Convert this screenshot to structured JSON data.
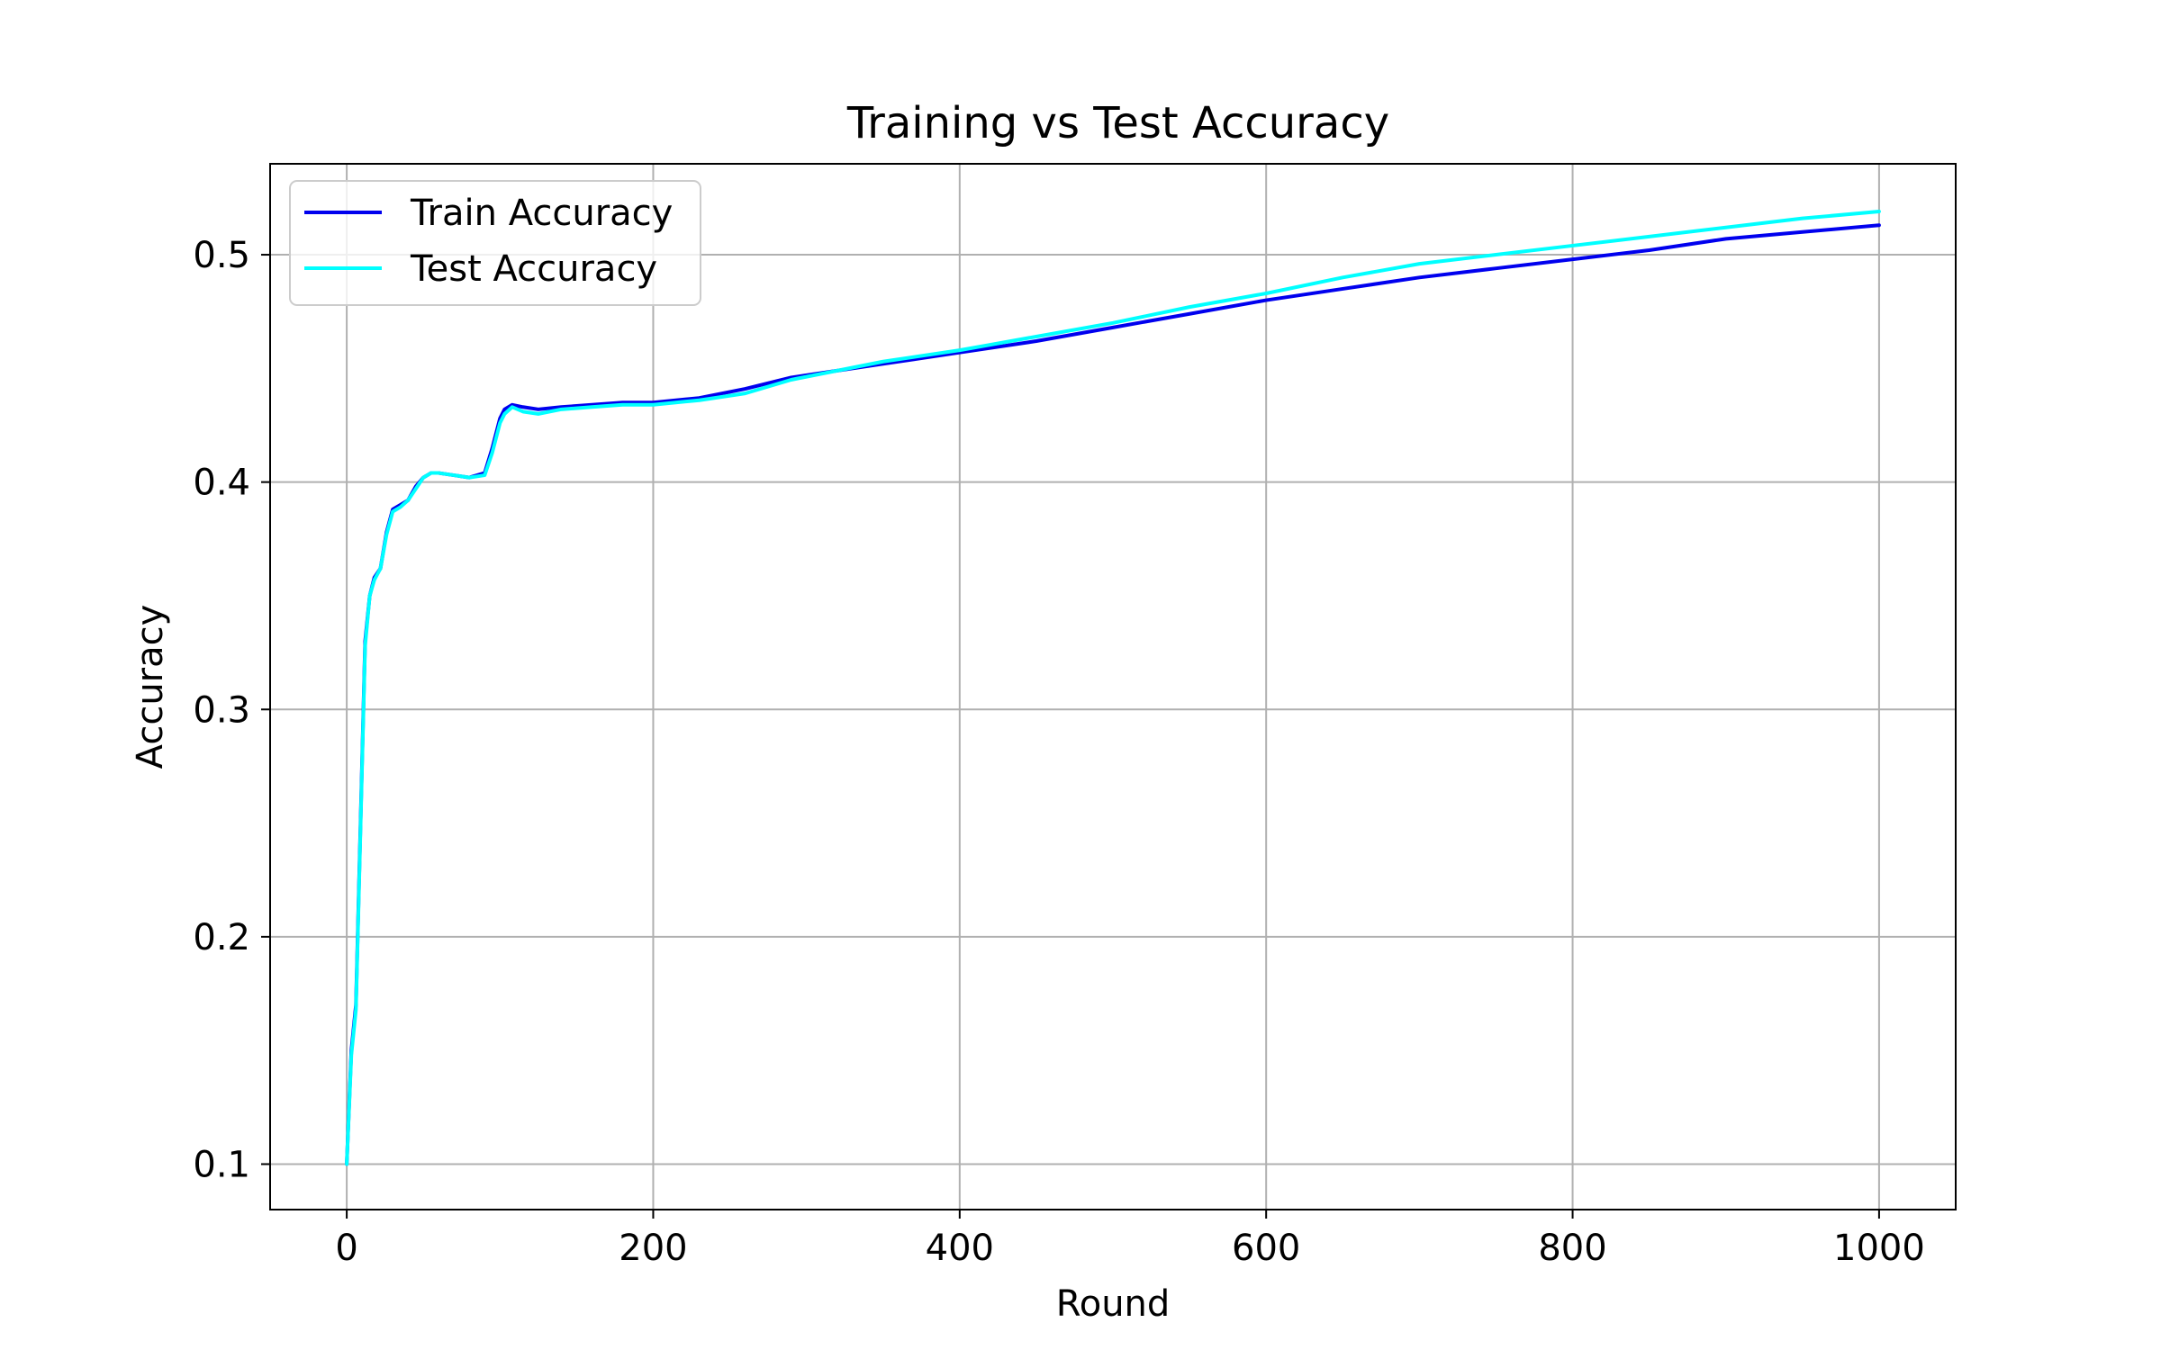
{
  "chart_data": {
    "type": "line",
    "title": "Training vs Test Accuracy",
    "xlabel": "Round",
    "ylabel": "Accuracy",
    "xlim": [
      -50,
      1050
    ],
    "ylim": [
      0.08,
      0.54
    ],
    "xticks": [
      0,
      200,
      400,
      600,
      800,
      1000
    ],
    "yticks": [
      0.1,
      0.2,
      0.3,
      0.4,
      0.5
    ],
    "xtick_labels": [
      "0",
      "200",
      "400",
      "600",
      "800",
      "1000"
    ],
    "ytick_labels": [
      "0.1",
      "0.2",
      "0.3",
      "0.4",
      "0.5"
    ],
    "grid": true,
    "legend_position": "upper-left",
    "series": [
      {
        "name": "Train Accuracy",
        "color": "#0000ee",
        "x": [
          0,
          3,
          6,
          9,
          12,
          15,
          18,
          22,
          26,
          30,
          35,
          40,
          45,
          50,
          55,
          60,
          70,
          80,
          90,
          95,
          100,
          103,
          108,
          115,
          125,
          140,
          160,
          180,
          200,
          230,
          260,
          290,
          320,
          350,
          400,
          450,
          500,
          550,
          600,
          650,
          700,
          750,
          800,
          850,
          900,
          950,
          1000
        ],
        "y": [
          0.1,
          0.15,
          0.17,
          0.25,
          0.33,
          0.35,
          0.358,
          0.362,
          0.378,
          0.388,
          0.39,
          0.392,
          0.398,
          0.402,
          0.404,
          0.404,
          0.403,
          0.402,
          0.404,
          0.415,
          0.428,
          0.432,
          0.434,
          0.433,
          0.432,
          0.433,
          0.434,
          0.435,
          0.435,
          0.437,
          0.441,
          0.446,
          0.449,
          0.452,
          0.457,
          0.462,
          0.468,
          0.474,
          0.48,
          0.485,
          0.49,
          0.494,
          0.498,
          0.502,
          0.507,
          0.51,
          0.513
        ]
      },
      {
        "name": "Test Accuracy",
        "color": "#00ffff",
        "x": [
          0,
          3,
          6,
          9,
          12,
          15,
          18,
          22,
          26,
          30,
          35,
          40,
          45,
          50,
          55,
          60,
          70,
          80,
          90,
          95,
          100,
          103,
          108,
          115,
          125,
          140,
          160,
          180,
          200,
          230,
          260,
          290,
          320,
          350,
          400,
          450,
          500,
          550,
          600,
          650,
          700,
          750,
          800,
          850,
          900,
          950,
          1000
        ],
        "y": [
          0.1,
          0.148,
          0.168,
          0.248,
          0.328,
          0.35,
          0.357,
          0.362,
          0.377,
          0.387,
          0.389,
          0.392,
          0.397,
          0.402,
          0.404,
          0.404,
          0.403,
          0.402,
          0.403,
          0.413,
          0.426,
          0.43,
          0.433,
          0.431,
          0.43,
          0.432,
          0.433,
          0.434,
          0.434,
          0.436,
          0.439,
          0.445,
          0.449,
          0.453,
          0.458,
          0.464,
          0.47,
          0.477,
          0.483,
          0.49,
          0.496,
          0.5,
          0.504,
          0.508,
          0.512,
          0.516,
          0.519
        ]
      }
    ]
  }
}
